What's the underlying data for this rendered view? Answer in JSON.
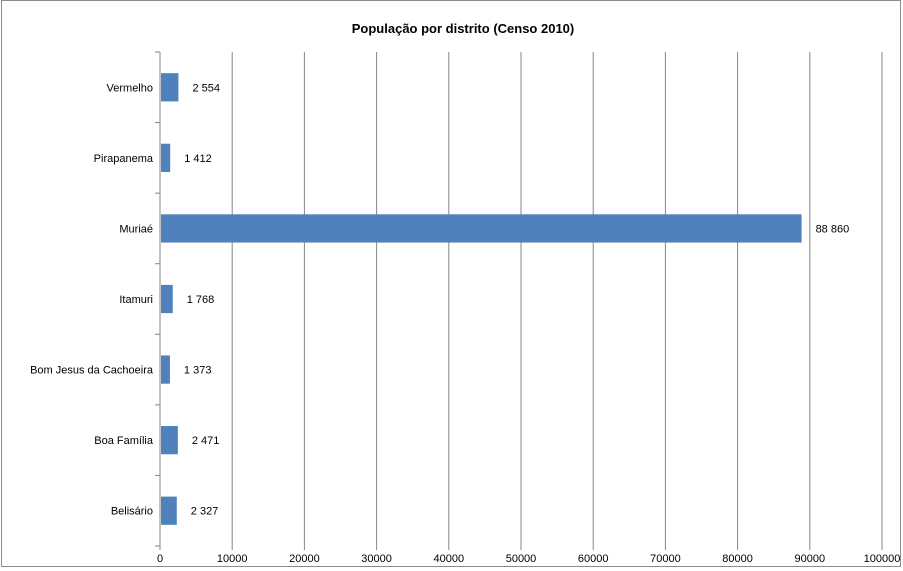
{
  "chart_data": {
    "type": "bar",
    "orientation": "horizontal",
    "title": "População por distrito (Censo 2010)",
    "categories": [
      "Belisário",
      "Boa Família",
      "Bom Jesus da Cachoeira",
      "Itamuri",
      "Muriaé",
      "Pirapanema",
      "Vermelho"
    ],
    "values": [
      2327,
      2471,
      1373,
      1768,
      88860,
      1412,
      2554
    ],
    "value_labels": [
      "2 327",
      "2 471",
      "1 373",
      "1 768",
      "88 860",
      "1 412",
      "2 554"
    ],
    "xlim": [
      0,
      100000
    ],
    "x_ticks": [
      0,
      10000,
      20000,
      30000,
      40000,
      50000,
      60000,
      70000,
      80000,
      90000,
      100000
    ],
    "x_tick_labels": [
      "0",
      "10000",
      "20000",
      "30000",
      "40000",
      "50000",
      "60000",
      "70000",
      "80000",
      "90000",
      "100000"
    ],
    "xlabel": "",
    "ylabel": "",
    "grid": "vertical",
    "legend": "none",
    "bar_color": "#4f81bd",
    "grid_color": "#868686"
  }
}
